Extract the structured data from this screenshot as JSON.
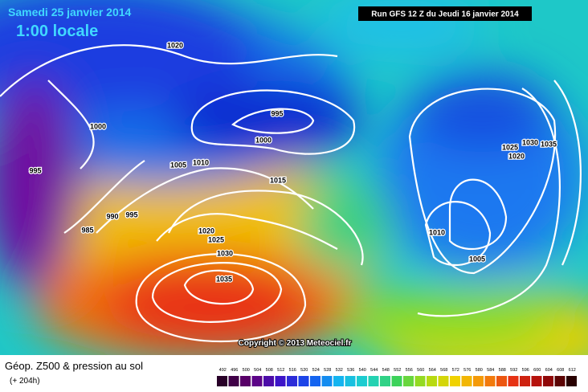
{
  "header": {
    "title": "Samedi 25 janvier 2014",
    "time": "1:00 locale",
    "run": "Run GFS 12 Z du Jeudi 16 janvier 2014"
  },
  "isobar_labels": [
    1020,
    1000,
    995,
    1000,
    995,
    1005,
    1010,
    1015,
    990,
    995,
    985,
    1020,
    1025,
    1030,
    1035,
    1010,
    1005,
    1025,
    1030,
    1035,
    1020
  ],
  "copyright": "Copyright © 2013 Meteociel.fr",
  "legend": {
    "title": "Géop. Z500 & pression au sol",
    "lead": "(+ 204h)",
    "scale": [
      492,
      496,
      500,
      504,
      508,
      512,
      516,
      520,
      524,
      528,
      532,
      536,
      540,
      544,
      548,
      552,
      556,
      560,
      564,
      568,
      572,
      576,
      580,
      584,
      588,
      592,
      596,
      600,
      604,
      608,
      612
    ]
  }
}
